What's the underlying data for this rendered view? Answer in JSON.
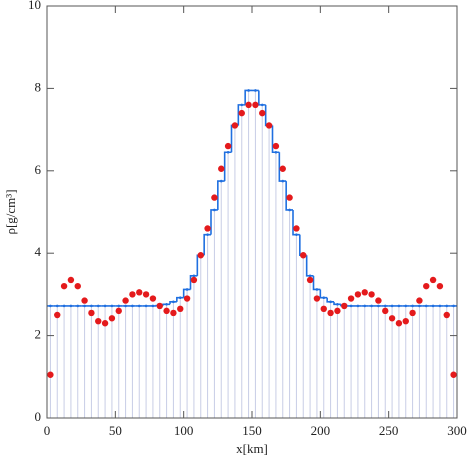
{
  "chart_data": {
    "type": "step",
    "x_label": "x[km]",
    "y_label": "ρ[g/cm³]",
    "x": [
      2.5,
      7.5,
      12.5,
      17.5,
      22.5,
      27.5,
      32.5,
      37.5,
      42.5,
      47.5,
      52.5,
      57.5,
      62.5,
      67.5,
      72.5,
      77.5,
      82.5,
      87.5,
      92.5,
      97.5,
      102.5,
      107.5,
      112.5,
      117.5,
      122.5,
      127.5,
      132.5,
      137.5,
      142.5,
      147.5,
      152.5,
      157.5,
      162.5,
      167.5,
      172.5,
      177.5,
      182.5,
      187.5,
      192.5,
      197.5,
      202.5,
      207.5,
      212.5,
      217.5,
      222.5,
      227.5,
      232.5,
      237.5,
      242.5,
      247.5,
      252.5,
      257.5,
      262.5,
      267.5,
      272.5,
      277.5,
      282.5,
      287.5,
      292.5,
      297.5
    ],
    "series": [
      {
        "type": "step",
        "color": "#1f6fe0",
        "fill_color": "#c8cde6",
        "values": [
          2.72,
          2.72,
          2.72,
          2.72,
          2.72,
          2.72,
          2.72,
          2.72,
          2.72,
          2.72,
          2.72,
          2.72,
          2.72,
          2.72,
          2.72,
          2.72,
          2.73,
          2.76,
          2.82,
          2.92,
          3.12,
          3.45,
          3.95,
          4.45,
          5.05,
          5.75,
          6.45,
          7.1,
          7.6,
          7.95,
          7.95,
          7.6,
          7.1,
          6.45,
          5.75,
          5.05,
          4.45,
          3.95,
          3.45,
          3.12,
          2.92,
          2.82,
          2.76,
          2.73,
          2.72,
          2.72,
          2.72,
          2.72,
          2.72,
          2.72,
          2.72,
          2.72,
          2.72,
          2.72,
          2.72,
          2.72,
          2.72,
          2.72,
          2.72,
          2.72
        ]
      },
      {
        "type": "scatter",
        "color": "#e41a1c",
        "values": [
          1.05,
          2.5,
          3.2,
          3.35,
          3.2,
          2.85,
          2.55,
          2.35,
          2.3,
          2.42,
          2.6,
          2.85,
          3.0,
          3.05,
          3.0,
          2.9,
          2.72,
          2.6,
          2.55,
          2.65,
          2.9,
          3.35,
          3.95,
          4.6,
          5.35,
          6.05,
          6.6,
          7.1,
          7.4,
          7.6,
          7.6,
          7.4,
          7.1,
          6.6,
          6.05,
          5.35,
          4.6,
          3.95,
          3.35,
          2.9,
          2.65,
          2.55,
          2.6,
          2.72,
          2.9,
          3.0,
          3.05,
          3.0,
          2.85,
          2.6,
          2.42,
          2.3,
          2.35,
          2.55,
          2.85,
          3.2,
          3.35,
          3.2,
          2.5,
          1.05
        ]
      }
    ],
    "xlim": [
      0,
      300
    ],
    "ylim": [
      0,
      10
    ],
    "xticks": [
      0,
      50,
      100,
      150,
      200,
      250,
      300
    ],
    "yticks": [
      0,
      2,
      4,
      6,
      8,
      10
    ]
  }
}
